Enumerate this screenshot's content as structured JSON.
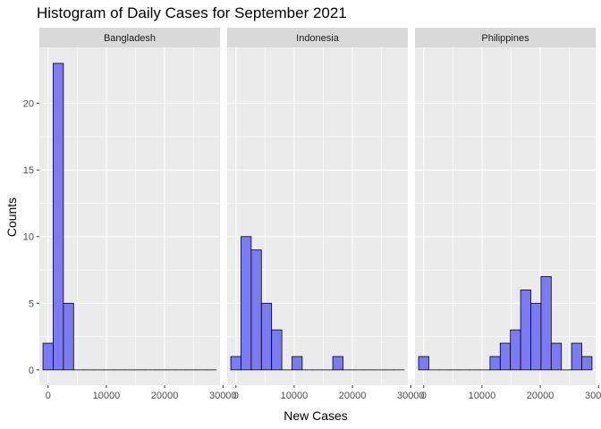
{
  "chart_data": {
    "type": "bar",
    "title": "Histogram of Daily Cases for September 2021",
    "xlabel": "New Cases",
    "ylabel": "Counts",
    "xlim": [
      -1500,
      29500
    ],
    "ylim": [
      -1.15,
      24.2
    ],
    "x_ticks": [
      0,
      10000,
      20000,
      30000
    ],
    "x_tick_labels": [
      "0",
      "10000",
      "20000",
      "30000"
    ],
    "y_ticks": [
      0,
      5,
      10,
      15,
      20
    ],
    "y_tick_labels": [
      "0",
      "5",
      "10",
      "15",
      "20"
    ],
    "bin_width": 1750,
    "bin_centers": [
      0,
      1750,
      3500,
      5250,
      7000,
      8750,
      10500,
      12250,
      14000,
      15750,
      17500,
      19250,
      21000,
      22750,
      24500,
      26250,
      28000
    ],
    "fill_color": "#7B7BF6",
    "panel_color": "#EBEBEB",
    "strip_color": "#D9D9D9",
    "grid": true,
    "facets": [
      {
        "label": "Bangladesh",
        "counts": [
          2,
          23,
          5,
          0,
          0,
          0,
          0,
          0,
          0,
          0,
          0,
          0,
          0,
          0,
          0,
          0,
          0
        ]
      },
      {
        "label": "Indonesia",
        "counts": [
          1,
          10,
          9,
          5,
          3,
          0,
          1,
          0,
          0,
          0,
          1,
          0,
          0,
          0,
          0,
          0,
          0
        ]
      },
      {
        "label": "Philippines",
        "counts": [
          1,
          0,
          0,
          0,
          0,
          0,
          0,
          1,
          2,
          3,
          6,
          5,
          7,
          2,
          0,
          2,
          1
        ]
      }
    ]
  }
}
